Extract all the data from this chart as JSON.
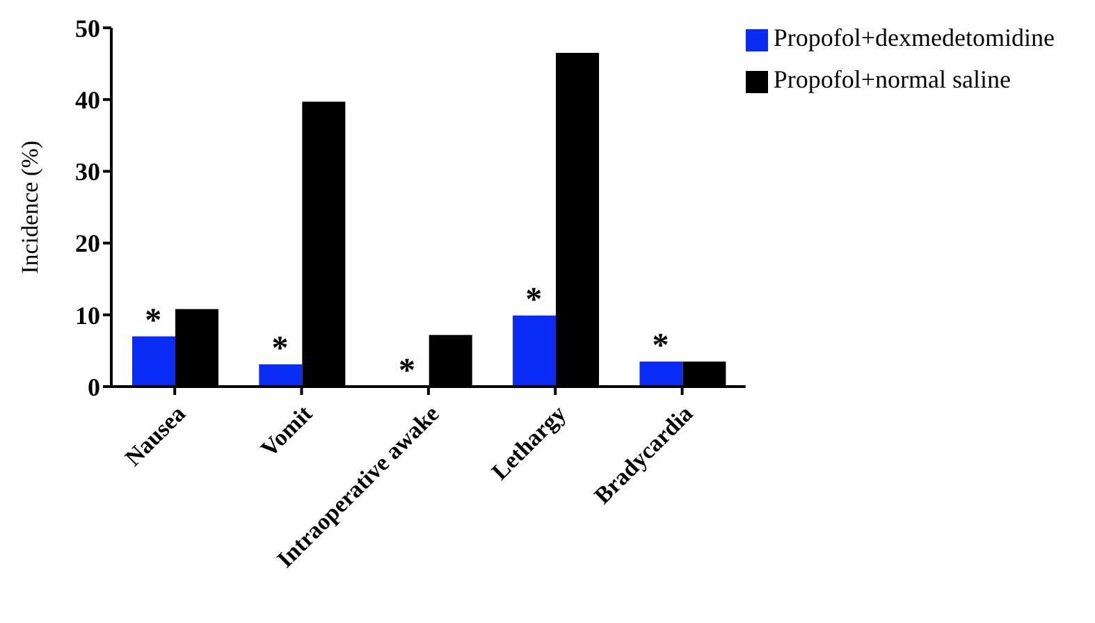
{
  "chart_data": {
    "type": "bar",
    "ylabel": "Incidence (%)",
    "categories": [
      "Nausea",
      "Vomit",
      "Intraoperative awake",
      "Lethargy",
      "Bradycardia"
    ],
    "series": [
      {
        "name": "Propofol+dexmedetomidine",
        "color": "#0a2cf5",
        "values": [
          7.0,
          3.1,
          0,
          9.9,
          3.5
        ]
      },
      {
        "name": "Propofol+normal saline",
        "color": "#000000",
        "values": [
          10.8,
          39.7,
          7.2,
          46.5,
          3.5
        ]
      }
    ],
    "ylim": [
      0,
      50
    ],
    "yticks": [
      0,
      10,
      20,
      30,
      40,
      50
    ],
    "grid": false,
    "legend": "top right",
    "annotations": [
      {
        "text": "*",
        "x": "Nausea",
        "y": 7.0
      },
      {
        "text": "*",
        "x": "Vomit",
        "y": 3.1
      },
      {
        "text": "*",
        "x": "Intraoperative awake",
        "y": 0
      },
      {
        "text": "*",
        "x": "Lethargy",
        "y": 9.9
      },
      {
        "text": "*",
        "x": "Bradycardia",
        "y": 3.5
      }
    ]
  }
}
